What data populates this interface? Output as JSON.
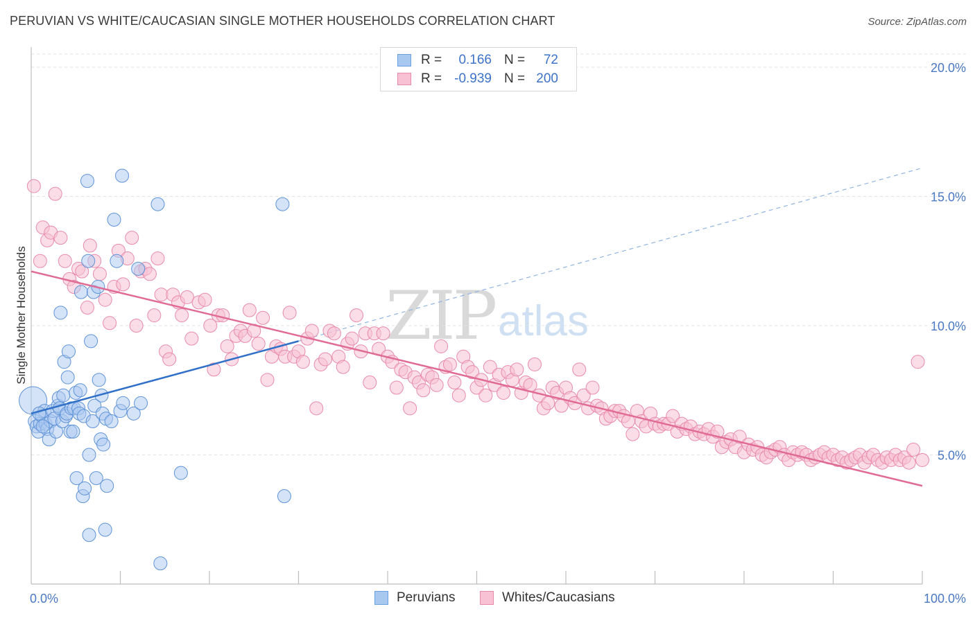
{
  "title": "PERUVIAN VS WHITE/CAUCASIAN SINGLE MOTHER HOUSEHOLDS CORRELATION CHART",
  "source": "Source: ZipAtlas.com",
  "watermark": {
    "zip": "ZIP",
    "atlas": "atlas"
  },
  "legend": {
    "rows": [
      {
        "r_label": "R =",
        "r_value": "0.166",
        "n_label": "N =",
        "n_value": "72",
        "color": "#a9c8f0",
        "border": "#6a9fe0"
      },
      {
        "r_label": "R =",
        "r_value": "-0.939",
        "n_label": "N =",
        "n_value": "200",
        "color": "#f8c1d4",
        "border": "#e88aac"
      }
    ]
  },
  "bottom_legend": {
    "peruvians": "Peruvians",
    "whites": "Whites/Caucasians"
  },
  "chart_data": {
    "type": "scatter",
    "title": "PERUVIAN VS WHITE/CAUCASIAN SINGLE MOTHER HOUSEHOLDS CORRELATION CHART",
    "xlabel": "",
    "ylabel": "Single Mother Households",
    "xlim": [
      0,
      100
    ],
    "ylim": [
      0,
      20.5
    ],
    "x_tick_labels": [
      "0.0%",
      "100.0%"
    ],
    "y_ticks": [
      5,
      10,
      15,
      20
    ],
    "y_tick_labels": [
      "5.0%",
      "10.0%",
      "15.0%",
      "20.0%"
    ],
    "grid": true,
    "colors": {
      "peruvians_fill": "#a9c8f0",
      "peruvians_edge": "#5f93d8",
      "peruvians_line": "#3070c8",
      "whites_fill": "#f8c1d4",
      "whites_edge": "#e88aac",
      "whites_line": "#e06b95"
    },
    "series": [
      {
        "name": "Peruvians",
        "trend": {
          "x0": 0,
          "y0": 6.6,
          "x1": 30,
          "y1": 9.4,
          "dashed_to_x": 100,
          "dashed_to_y": 16.1
        },
        "points": [
          [
            0.2,
            7.1
          ],
          [
            0.4,
            6.3
          ],
          [
            0.6,
            6.1
          ],
          [
            0.8,
            5.9
          ],
          [
            1.0,
            6.2
          ],
          [
            1.2,
            6.5
          ],
          [
            1.5,
            6.7
          ],
          [
            1.6,
            6.2
          ],
          [
            1.8,
            6.0
          ],
          [
            2.0,
            5.6
          ],
          [
            2.2,
            6.3
          ],
          [
            2.4,
            6.7
          ],
          [
            2.6,
            6.4
          ],
          [
            2.8,
            5.9
          ],
          [
            3.0,
            6.9
          ],
          [
            3.1,
            7.2
          ],
          [
            3.2,
            6.8
          ],
          [
            3.3,
            10.5
          ],
          [
            3.5,
            6.3
          ],
          [
            3.6,
            7.3
          ],
          [
            3.7,
            8.6
          ],
          [
            3.9,
            6.5
          ],
          [
            4.0,
            6.6
          ],
          [
            4.1,
            8.0
          ],
          [
            4.2,
            9.0
          ],
          [
            4.4,
            5.9
          ],
          [
            4.5,
            6.8
          ],
          [
            4.7,
            5.9
          ],
          [
            4.8,
            6.8
          ],
          [
            5.0,
            7.4
          ],
          [
            5.1,
            4.1
          ],
          [
            5.3,
            6.8
          ],
          [
            5.4,
            6.6
          ],
          [
            5.5,
            7.5
          ],
          [
            5.6,
            11.3
          ],
          [
            5.8,
            3.4
          ],
          [
            5.9,
            6.5
          ],
          [
            6.0,
            3.7
          ],
          [
            6.3,
            15.6
          ],
          [
            6.4,
            12.5
          ],
          [
            6.5,
            5.0
          ],
          [
            6.5,
            1.9
          ],
          [
            6.7,
            9.4
          ],
          [
            6.9,
            6.3
          ],
          [
            7.0,
            11.3
          ],
          [
            7.1,
            6.9
          ],
          [
            7.3,
            4.1
          ],
          [
            7.5,
            11.5
          ],
          [
            7.6,
            7.9
          ],
          [
            7.8,
            5.6
          ],
          [
            7.9,
            7.3
          ],
          [
            8.0,
            6.6
          ],
          [
            8.1,
            5.4
          ],
          [
            8.3,
            2.1
          ],
          [
            8.4,
            6.4
          ],
          [
            8.5,
            3.8
          ],
          [
            9.0,
            6.3
          ],
          [
            9.3,
            14.1
          ],
          [
            9.6,
            12.5
          ],
          [
            10.0,
            6.7
          ],
          [
            10.2,
            15.8
          ],
          [
            10.3,
            7.0
          ],
          [
            11.5,
            6.6
          ],
          [
            12.0,
            12.2
          ],
          [
            12.3,
            7.0
          ],
          [
            14.2,
            14.7
          ],
          [
            14.5,
            0.8
          ],
          [
            16.8,
            4.3
          ],
          [
            28.2,
            14.7
          ],
          [
            28.4,
            3.4
          ],
          [
            0.9,
            6.6
          ],
          [
            1.3,
            6.1
          ]
        ]
      },
      {
        "name": "Whites/Caucasians",
        "trend": {
          "x0": 0,
          "y0": 12.1,
          "x1": 100,
          "y1": 3.8
        },
        "points": [
          [
            0.3,
            15.4
          ],
          [
            1.0,
            12.5
          ],
          [
            1.3,
            13.8
          ],
          [
            1.8,
            13.3
          ],
          [
            2.2,
            13.6
          ],
          [
            2.7,
            15.1
          ],
          [
            3.3,
            13.4
          ],
          [
            3.8,
            12.5
          ],
          [
            4.3,
            11.8
          ],
          [
            4.8,
            11.5
          ],
          [
            5.3,
            12.2
          ],
          [
            5.7,
            12.1
          ],
          [
            6.3,
            10.7
          ],
          [
            6.6,
            13.1
          ],
          [
            7.1,
            12.5
          ],
          [
            7.7,
            12.0
          ],
          [
            8.3,
            11.0
          ],
          [
            8.8,
            10.1
          ],
          [
            9.3,
            11.5
          ],
          [
            9.8,
            12.9
          ],
          [
            10.3,
            11.6
          ],
          [
            10.8,
            12.6
          ],
          [
            11.3,
            13.4
          ],
          [
            11.8,
            10.0
          ],
          [
            12.3,
            12.1
          ],
          [
            12.8,
            12.2
          ],
          [
            13.3,
            12.0
          ],
          [
            13.8,
            10.4
          ],
          [
            14.2,
            12.6
          ],
          [
            14.6,
            11.2
          ],
          [
            15.1,
            9.0
          ],
          [
            15.5,
            8.7
          ],
          [
            15.9,
            11.2
          ],
          [
            16.5,
            10.9
          ],
          [
            16.9,
            10.4
          ],
          [
            17.5,
            11.1
          ],
          [
            18.0,
            9.5
          ],
          [
            18.8,
            10.9
          ],
          [
            19.5,
            11.0
          ],
          [
            20.1,
            10.0
          ],
          [
            20.5,
            8.3
          ],
          [
            21.0,
            10.4
          ],
          [
            21.5,
            10.4
          ],
          [
            22.0,
            9.2
          ],
          [
            22.5,
            8.7
          ],
          [
            23.0,
            9.6
          ],
          [
            23.5,
            9.8
          ],
          [
            24.0,
            9.6
          ],
          [
            24.5,
            10.6
          ],
          [
            25.0,
            9.8
          ],
          [
            25.5,
            9.3
          ],
          [
            26.0,
            10.3
          ],
          [
            26.5,
            7.9
          ],
          [
            27.0,
            8.8
          ],
          [
            27.5,
            9.2
          ],
          [
            28.0,
            9.1
          ],
          [
            28.5,
            8.8
          ],
          [
            29.0,
            10.5
          ],
          [
            29.5,
            8.8
          ],
          [
            30.0,
            9.0
          ],
          [
            30.5,
            8.6
          ],
          [
            31.0,
            9.5
          ],
          [
            31.5,
            9.8
          ],
          [
            32.0,
            6.8
          ],
          [
            32.5,
            8.5
          ],
          [
            33.0,
            8.7
          ],
          [
            33.5,
            9.8
          ],
          [
            34.0,
            9.7
          ],
          [
            34.5,
            8.8
          ],
          [
            35.0,
            8.4
          ],
          [
            35.5,
            9.3
          ],
          [
            36.0,
            9.5
          ],
          [
            36.5,
            10.4
          ],
          [
            37.0,
            9.0
          ],
          [
            37.5,
            9.7
          ],
          [
            38.0,
            7.8
          ],
          [
            38.5,
            9.7
          ],
          [
            39.0,
            9.1
          ],
          [
            39.5,
            9.7
          ],
          [
            40.0,
            8.8
          ],
          [
            40.5,
            8.6
          ],
          [
            41.0,
            7.6
          ],
          [
            41.5,
            8.3
          ],
          [
            42.0,
            8.2
          ],
          [
            42.5,
            6.8
          ],
          [
            43.0,
            8.0
          ],
          [
            43.5,
            7.8
          ],
          [
            44.0,
            7.5
          ],
          [
            44.5,
            8.1
          ],
          [
            45.0,
            8.0
          ],
          [
            45.5,
            7.7
          ],
          [
            46.0,
            9.2
          ],
          [
            46.5,
            8.4
          ],
          [
            47.0,
            8.5
          ],
          [
            47.5,
            7.8
          ],
          [
            48.0,
            7.3
          ],
          [
            48.5,
            8.8
          ],
          [
            49.0,
            8.4
          ],
          [
            49.5,
            8.2
          ],
          [
            50.0,
            7.6
          ],
          [
            50.5,
            7.9
          ],
          [
            51.0,
            7.3
          ],
          [
            51.5,
            8.4
          ],
          [
            52.0,
            7.7
          ],
          [
            52.5,
            8.1
          ],
          [
            53.0,
            7.4
          ],
          [
            53.5,
            8.2
          ],
          [
            54.0,
            7.9
          ],
          [
            54.5,
            8.3
          ],
          [
            55.0,
            7.4
          ],
          [
            55.5,
            7.8
          ],
          [
            56.0,
            7.7
          ],
          [
            56.5,
            8.5
          ],
          [
            57.0,
            7.3
          ],
          [
            57.5,
            6.8
          ],
          [
            58.0,
            7.0
          ],
          [
            58.5,
            7.6
          ],
          [
            59.0,
            7.4
          ],
          [
            59.5,
            6.9
          ],
          [
            60.0,
            7.6
          ],
          [
            60.5,
            7.2
          ],
          [
            61.0,
            7.0
          ],
          [
            61.5,
            8.3
          ],
          [
            62.0,
            7.3
          ],
          [
            62.5,
            6.8
          ],
          [
            63.0,
            7.6
          ],
          [
            63.5,
            6.9
          ],
          [
            64.0,
            6.8
          ],
          [
            64.5,
            6.4
          ],
          [
            65.0,
            6.5
          ],
          [
            65.5,
            6.7
          ],
          [
            66.0,
            6.7
          ],
          [
            66.5,
            6.5
          ],
          [
            67.0,
            6.3
          ],
          [
            67.5,
            5.8
          ],
          [
            68.0,
            6.7
          ],
          [
            68.5,
            6.3
          ],
          [
            69.0,
            6.1
          ],
          [
            69.5,
            6.6
          ],
          [
            70.0,
            6.2
          ],
          [
            70.5,
            6.1
          ],
          [
            71.0,
            6.2
          ],
          [
            71.5,
            6.2
          ],
          [
            72.0,
            6.5
          ],
          [
            72.5,
            5.9
          ],
          [
            73.0,
            6.2
          ],
          [
            73.5,
            6.0
          ],
          [
            74.0,
            6.1
          ],
          [
            74.5,
            5.8
          ],
          [
            75.0,
            5.9
          ],
          [
            75.5,
            5.8
          ],
          [
            76.0,
            6.0
          ],
          [
            76.5,
            5.7
          ],
          [
            77.0,
            5.9
          ],
          [
            77.5,
            5.3
          ],
          [
            78.0,
            5.5
          ],
          [
            78.5,
            5.6
          ],
          [
            79.0,
            5.3
          ],
          [
            79.5,
            5.7
          ],
          [
            80.0,
            5.1
          ],
          [
            80.5,
            5.4
          ],
          [
            81.0,
            5.2
          ],
          [
            81.5,
            5.3
          ],
          [
            82.0,
            5.0
          ],
          [
            82.5,
            4.9
          ],
          [
            83.0,
            5.1
          ],
          [
            83.5,
            5.2
          ],
          [
            84.0,
            5.3
          ],
          [
            84.5,
            5.0
          ],
          [
            85.0,
            4.8
          ],
          [
            85.5,
            5.1
          ],
          [
            86.0,
            5.0
          ],
          [
            86.5,
            5.1
          ],
          [
            87.0,
            5.0
          ],
          [
            87.5,
            4.8
          ],
          [
            88.0,
            4.9
          ],
          [
            88.5,
            5.0
          ],
          [
            89.0,
            5.1
          ],
          [
            89.5,
            4.9
          ],
          [
            90.0,
            5.0
          ],
          [
            90.5,
            4.8
          ],
          [
            91.0,
            4.9
          ],
          [
            91.5,
            4.7
          ],
          [
            92.0,
            4.8
          ],
          [
            92.5,
            4.9
          ],
          [
            93.0,
            5.0
          ],
          [
            93.5,
            4.7
          ],
          [
            94.0,
            4.9
          ],
          [
            94.5,
            5.0
          ],
          [
            95.0,
            4.8
          ],
          [
            95.5,
            4.7
          ],
          [
            96.0,
            4.9
          ],
          [
            96.5,
            4.8
          ],
          [
            97.0,
            5.0
          ],
          [
            97.5,
            4.8
          ],
          [
            98.0,
            4.9
          ],
          [
            98.5,
            4.7
          ],
          [
            99.0,
            5.2
          ],
          [
            99.5,
            8.6
          ],
          [
            100.0,
            4.8
          ]
        ]
      }
    ]
  }
}
